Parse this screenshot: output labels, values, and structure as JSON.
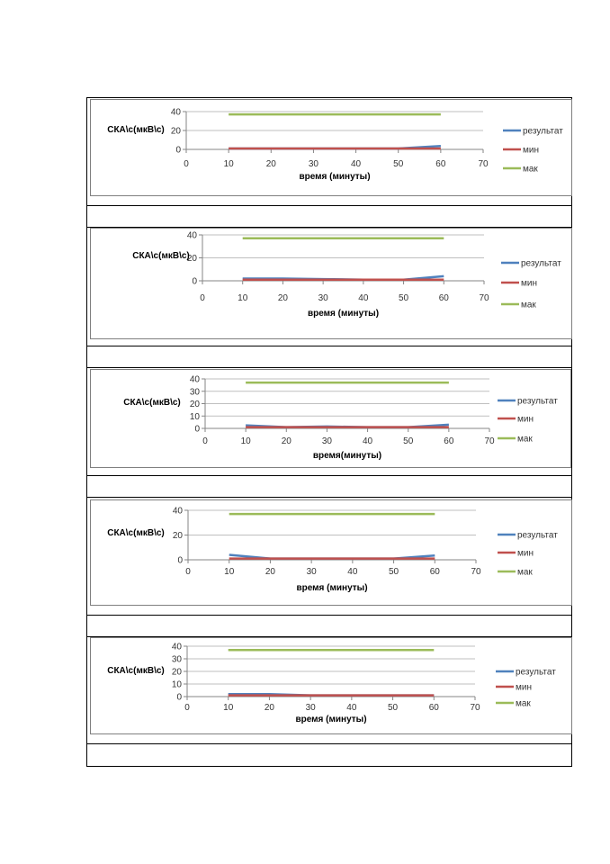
{
  "colors": {
    "result": "#4f81bd",
    "min": "#c0504d",
    "max": "#9bbb59",
    "grid": "#bfbfbf",
    "axis": "#868686"
  },
  "chart_data": [
    {
      "type": "line",
      "ylabel": "СКА\\с(мкВ\\с)",
      "xlabel": "время (минуты)",
      "xlim": [
        0,
        70
      ],
      "xticks": [
        0,
        10,
        20,
        30,
        40,
        50,
        60,
        70
      ],
      "ylim": [
        0,
        40
      ],
      "yticks": [
        0,
        20,
        40
      ],
      "grid": true,
      "legend_position": "right",
      "series": [
        {
          "name": "результат",
          "x": [
            10,
            20,
            30,
            40,
            50,
            60
          ],
          "values": [
            1,
            1,
            1,
            1,
            1,
            3.5
          ]
        },
        {
          "name": "мин",
          "x": [
            10,
            20,
            30,
            40,
            50,
            60
          ],
          "values": [
            1,
            1,
            1,
            1,
            1,
            1
          ]
        },
        {
          "name": "мак",
          "x": [
            10,
            20,
            30,
            40,
            50,
            60
          ],
          "values": [
            37,
            37,
            37,
            37,
            37,
            37
          ]
        }
      ]
    },
    {
      "type": "line",
      "ylabel": "СКА\\с(мкВ\\с)",
      "xlabel": "время (минуты)",
      "xlim": [
        0,
        70
      ],
      "xticks": [
        0,
        10,
        20,
        30,
        40,
        50,
        60,
        70
      ],
      "ylim": [
        0,
        40
      ],
      "yticks": [
        0,
        20,
        40
      ],
      "grid": true,
      "legend_position": "right",
      "series": [
        {
          "name": "результат",
          "x": [
            10,
            20,
            30,
            40,
            50,
            60
          ],
          "values": [
            2,
            2,
            1.5,
            1,
            1,
            4
          ]
        },
        {
          "name": "мин",
          "x": [
            10,
            20,
            30,
            40,
            50,
            60
          ],
          "values": [
            1,
            1,
            1,
            1,
            1,
            1
          ]
        },
        {
          "name": "мак",
          "x": [
            10,
            20,
            30,
            40,
            50,
            60
          ],
          "values": [
            37,
            37,
            37,
            37,
            37,
            37
          ]
        }
      ]
    },
    {
      "type": "line",
      "ylabel": "СКА\\с(мкВ\\с)",
      "xlabel": "время(минуты)",
      "xlim": [
        0,
        70
      ],
      "xticks": [
        0,
        10,
        20,
        30,
        40,
        50,
        60,
        70
      ],
      "ylim": [
        0,
        40
      ],
      "yticks": [
        0,
        10,
        20,
        30,
        40
      ],
      "grid": true,
      "legend_position": "right",
      "series": [
        {
          "name": "результат",
          "x": [
            10,
            20,
            30,
            40,
            50,
            60
          ],
          "values": [
            2.5,
            1,
            1.5,
            1,
            1,
            3
          ]
        },
        {
          "name": "мин",
          "x": [
            10,
            20,
            30,
            40,
            50,
            60
          ],
          "values": [
            1,
            1,
            1,
            1,
            1,
            1
          ]
        },
        {
          "name": "мак",
          "x": [
            10,
            20,
            30,
            40,
            50,
            60
          ],
          "values": [
            37,
            37,
            37,
            37,
            37,
            37
          ]
        }
      ]
    },
    {
      "type": "line",
      "ylabel": "СКА\\с(мкВ\\с)",
      "xlabel": "время (минуты)",
      "xlim": [
        0,
        70
      ],
      "xticks": [
        0,
        10,
        20,
        30,
        40,
        50,
        60,
        70
      ],
      "ylim": [
        0,
        40
      ],
      "yticks": [
        0,
        20,
        40
      ],
      "grid": true,
      "legend_position": "right",
      "series": [
        {
          "name": "результат",
          "x": [
            10,
            20,
            30,
            40,
            50,
            60
          ],
          "values": [
            4,
            1,
            1,
            1,
            1,
            3.5
          ]
        },
        {
          "name": "мин",
          "x": [
            10,
            20,
            30,
            40,
            50,
            60
          ],
          "values": [
            1,
            1,
            1,
            1,
            1,
            1
          ]
        },
        {
          "name": "мак",
          "x": [
            10,
            20,
            30,
            40,
            50,
            60
          ],
          "values": [
            37,
            37,
            37,
            37,
            37,
            37
          ]
        }
      ]
    },
    {
      "type": "line",
      "ylabel": "СКА\\с(мкВ\\с)",
      "xlabel": "время (минуты)",
      "xlim": [
        0,
        70
      ],
      "xticks": [
        0,
        10,
        20,
        30,
        40,
        50,
        60,
        70
      ],
      "ylim": [
        0,
        40
      ],
      "yticks": [
        0,
        10,
        20,
        30,
        40
      ],
      "grid": true,
      "legend_position": "right",
      "series": [
        {
          "name": "результат",
          "x": [
            10,
            20,
            30,
            40,
            50,
            60
          ],
          "values": [
            2,
            2,
            1,
            1,
            1,
            1
          ]
        },
        {
          "name": "мин",
          "x": [
            10,
            20,
            30,
            40,
            50,
            60
          ],
          "values": [
            1,
            1,
            1,
            1,
            1,
            1
          ]
        },
        {
          "name": "мак",
          "x": [
            10,
            20,
            30,
            40,
            50,
            60
          ],
          "values": [
            37,
            37,
            37,
            37,
            37,
            37
          ]
        }
      ]
    }
  ]
}
